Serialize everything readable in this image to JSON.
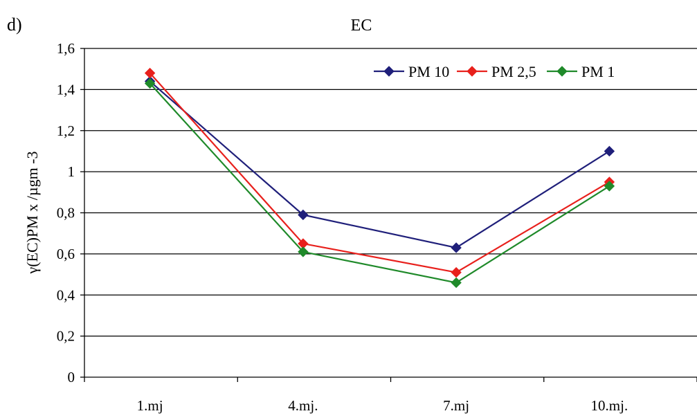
{
  "panel_label": "d)",
  "chart_data": {
    "type": "line",
    "title": "EC",
    "xlabel": "",
    "ylabel": "γ(EC)PM x /µgm -3",
    "categories": [
      "1.mj",
      "4.mj.",
      "7.mj",
      "10.mj."
    ],
    "ylim": [
      0,
      1.6
    ],
    "yticks": [
      "0",
      "0,2",
      "0,4",
      "0,6",
      "0,8",
      "1",
      "1,2",
      "1,4",
      "1,6"
    ],
    "grid": true,
    "legend_position": "top-right",
    "series": [
      {
        "name": "PM 10",
        "color": "#1f1f7a",
        "values": [
          1.44,
          0.79,
          0.63,
          1.1
        ]
      },
      {
        "name": "PM 2,5",
        "color": "#e8201c",
        "values": [
          1.48,
          0.65,
          0.51,
          0.95
        ]
      },
      {
        "name": "PM 1",
        "color": "#1f8a2a",
        "values": [
          1.43,
          0.61,
          0.46,
          0.93
        ]
      }
    ]
  }
}
